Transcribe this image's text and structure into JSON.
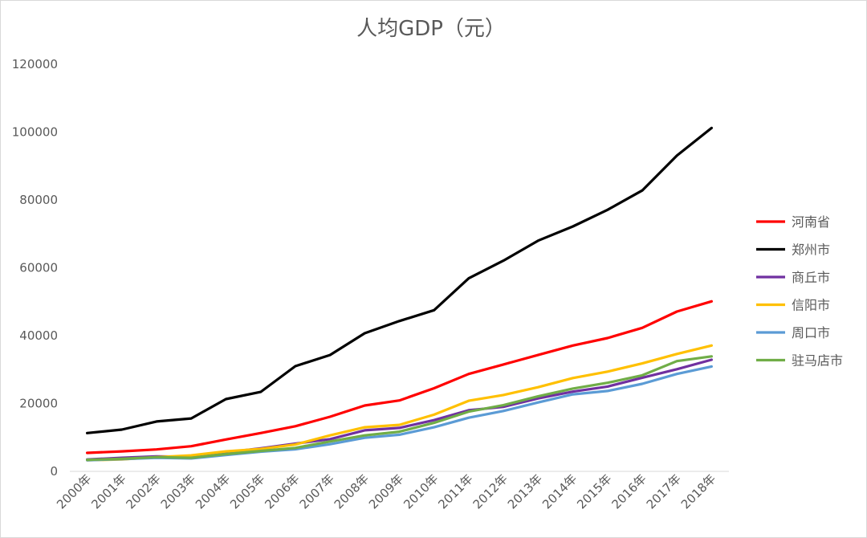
{
  "chart_data": {
    "type": "line",
    "title": "人均GDP（元）",
    "xlabel": "",
    "ylabel": "",
    "ylim": [
      0,
      120000
    ],
    "yticks": [
      0,
      20000,
      40000,
      60000,
      80000,
      100000,
      120000
    ],
    "ytick_labels": [
      "0",
      "20000",
      "40000",
      "60000",
      "80000",
      "100000",
      "120000"
    ],
    "grid": false,
    "legend_position": "right",
    "categories": [
      "2000年",
      "2001年",
      "2002年",
      "2003年",
      "2004年",
      "2005年",
      "2006年",
      "2007年",
      "2008年",
      "2009年",
      "2010年",
      "2011年",
      "2012年",
      "2013年",
      "2014年",
      "2015年",
      "2016年",
      "2017年",
      "2018年"
    ],
    "series": [
      {
        "name": "河南省",
        "color": "#ff0000",
        "values": [
          5450,
          5900,
          6450,
          7400,
          9400,
          11300,
          13300,
          16100,
          19400,
          20900,
          24500,
          28700,
          31500,
          34300,
          37100,
          39300,
          42300,
          47100,
          50100
        ]
      },
      {
        "name": "郑州市",
        "color": "#000000",
        "values": [
          11300,
          12300,
          14700,
          15600,
          21300,
          23400,
          31000,
          34300,
          40700,
          44300,
          47500,
          56900,
          62100,
          68000,
          72200,
          77100,
          82800,
          93100,
          101200
        ]
      },
      {
        "name": "商丘市",
        "color": "#7030a0",
        "values": [
          3500,
          4000,
          4400,
          4300,
          5600,
          6800,
          8200,
          9500,
          12100,
          12800,
          15100,
          18000,
          19000,
          21500,
          23500,
          25000,
          27600,
          30100,
          32900
        ]
      },
      {
        "name": "信阳市",
        "color": "#ffc000",
        "values": [
          3300,
          3500,
          4200,
          4700,
          5900,
          6600,
          7900,
          10600,
          13000,
          13700,
          16700,
          20800,
          22500,
          24800,
          27500,
          29400,
          31800,
          34600,
          37100
        ]
      },
      {
        "name": "周口市",
        "color": "#5b9bd5",
        "values": [
          3300,
          3600,
          4000,
          3800,
          4800,
          5800,
          6500,
          8000,
          9900,
          10800,
          13000,
          15800,
          17800,
          20300,
          22700,
          23700,
          25800,
          28700,
          30900
        ]
      },
      {
        "name": "驻马店市",
        "color": "#70ad47",
        "values": [
          3400,
          3700,
          4200,
          4000,
          5100,
          6000,
          6900,
          8800,
          10600,
          11700,
          14300,
          17600,
          19500,
          22100,
          24400,
          26100,
          28300,
          32500,
          33900
        ]
      }
    ]
  }
}
